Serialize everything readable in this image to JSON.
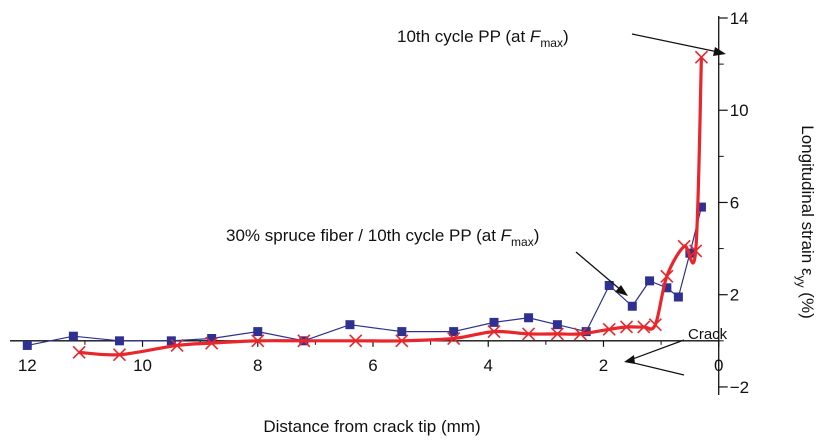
{
  "chart_data": {
    "type": "line",
    "xlabel": "Distance from crack tip (mm)",
    "ylabel_main": "Longitudinal strain ε",
    "ylabel_sub": "yy",
    "ylabel_unit": " (%)",
    "x_ticks": [
      "12",
      "10",
      "8",
      "6",
      "4",
      "2",
      "0"
    ],
    "y_ticks": [
      "−2",
      "2",
      "6",
      "10",
      "14"
    ],
    "xlim": [
      12.3,
      -0.3
    ],
    "ylim": [
      -3,
      14
    ],
    "x_reversed": true,
    "grid": false,
    "colors": {
      "pp": "#e8262b",
      "spruce": "#2e3192"
    },
    "series": [
      {
        "key": "pp",
        "marker": "x",
        "x": [
          11.1,
          10.4,
          9.4,
          8.8,
          8.0,
          7.2,
          6.3,
          5.5,
          4.6,
          3.9,
          3.3,
          2.8,
          2.4,
          1.9,
          1.6,
          1.3,
          1.1,
          0.9,
          0.6,
          0.4,
          0.3
        ],
        "y": [
          -0.5,
          -0.6,
          -0.2,
          -0.1,
          0.0,
          0.0,
          0.0,
          0.0,
          0.1,
          0.4,
          0.3,
          0.3,
          0.3,
          0.5,
          0.6,
          0.6,
          0.7,
          2.8,
          4.1,
          3.9,
          12.3
        ]
      },
      {
        "key": "spruce",
        "marker": "square",
        "x": [
          12.0,
          11.2,
          10.4,
          9.5,
          8.8,
          8.0,
          7.2,
          6.4,
          5.5,
          4.6,
          3.9,
          3.3,
          2.8,
          2.3,
          1.9,
          1.5,
          1.2,
          0.9,
          0.7,
          0.5,
          0.3
        ],
        "y": [
          -0.2,
          0.2,
          0.0,
          0.0,
          0.1,
          0.4,
          0.0,
          0.7,
          0.4,
          0.4,
          0.8,
          1.0,
          0.7,
          0.4,
          2.4,
          1.5,
          2.6,
          2.3,
          1.9,
          3.8,
          5.8
        ]
      }
    ],
    "annotations": {
      "pp_label_pre": "10th cycle PP (at ",
      "pp_label_var": "F",
      "pp_label_sub": "max",
      "pp_label_post": ")",
      "spruce_label_pre": "30% spruce fiber / 10th cycle PP (at ",
      "spruce_label_var": "F",
      "spruce_label_sub": "max",
      "spruce_label_post": ")",
      "crack_label": "Crack"
    }
  }
}
